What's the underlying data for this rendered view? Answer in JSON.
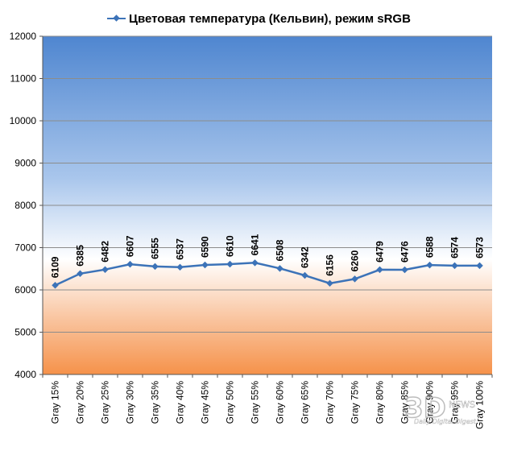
{
  "chart_data": {
    "type": "line",
    "title": "",
    "xlabel": "",
    "ylabel": "",
    "ylim": [
      4000,
      12000
    ],
    "ytick_step": 1000,
    "grid": true,
    "legend_position": "top",
    "background": "gradient: blue top, white middle, orange bottom",
    "categories": [
      "Gray 15%",
      "Gray 20%",
      "Gray 25%",
      "Gray 30%",
      "Gray 35%",
      "Gray 40%",
      "Gray 45%",
      "Gray 50%",
      "Gray 55%",
      "Gray 60%",
      "Gray 65%",
      "Gray 70%",
      "Gray 75%",
      "Gray 80%",
      "Gray 85%",
      "Gray 90%",
      "Gray 95%",
      "Gray 100%"
    ],
    "series": [
      {
        "name": "Цветовая температура (Кельвин), режим sRGB",
        "color": "#3c73b8",
        "values": [
          6109,
          6385,
          6482,
          6607,
          6555,
          6537,
          6590,
          6610,
          6641,
          6508,
          6342,
          6156,
          6260,
          6479,
          6476,
          6588,
          6574,
          6573
        ]
      }
    ]
  },
  "watermark": {
    "logo_text": "3D",
    "news_text": "NEWS",
    "tagline": "Daily Digital Digest"
  },
  "colors": {
    "gradient_top": "#4f86d0",
    "gradient_mid": "#ffffff",
    "gradient_bottom": "#f6924a",
    "line": "#3c73b8",
    "grid": "#8c8c8c"
  }
}
